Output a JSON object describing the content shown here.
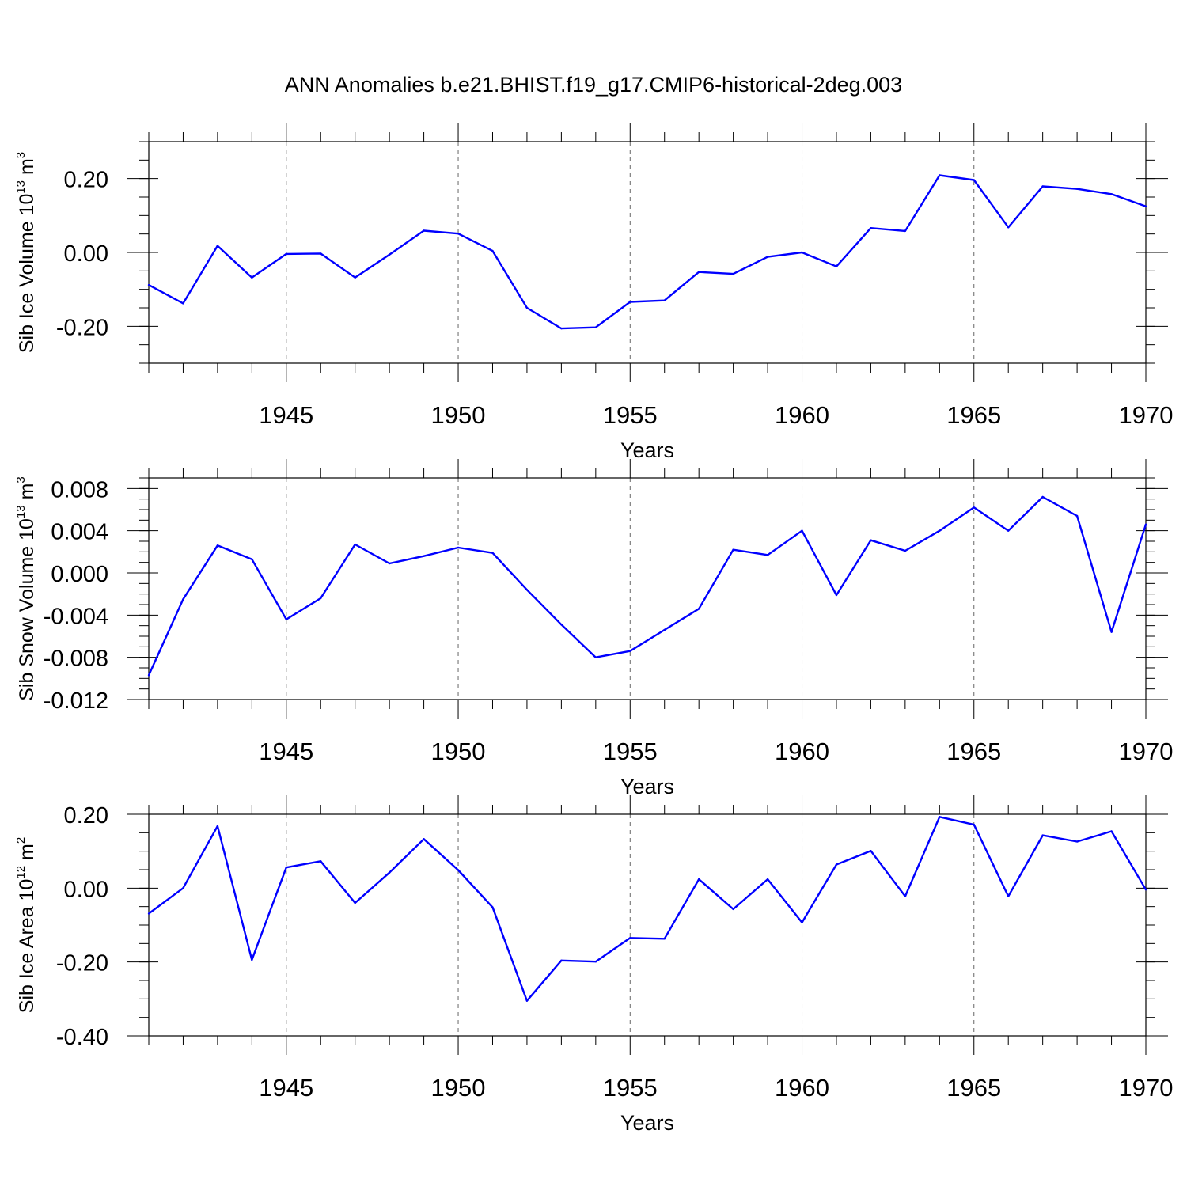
{
  "title": "ANN Anomalies b.e21.BHIST.f19_g17.CMIP6-historical-2deg.003",
  "line_color": "#0000ff",
  "chart_data": [
    {
      "type": "line",
      "ylabel": "Sib Ice Volume 10",
      "ylabel_sup": "13",
      "ylabel_unit": " m",
      "ylabel_unit_sup": "3",
      "xlabel": "Years",
      "xlim": [
        1941,
        1970
      ],
      "ylim": [
        -0.3,
        0.3
      ],
      "yticks": [
        -0.2,
        0.0,
        0.2
      ],
      "ytick_labels": [
        "-0.20",
        "0.00",
        "0.20"
      ],
      "yminor_step": 0.05,
      "xticks": [
        1945,
        1950,
        1955,
        1960,
        1965,
        1970
      ],
      "xtick_labels": [
        "1945",
        "1950",
        "1955",
        "1960",
        "1965",
        "1970"
      ],
      "grid": "dashed vertical at major x ticks",
      "x": [
        1941,
        1942,
        1943,
        1944,
        1945,
        1946,
        1947,
        1948,
        1949,
        1950,
        1951,
        1952,
        1953,
        1954,
        1955,
        1956,
        1957,
        1958,
        1959,
        1960,
        1961,
        1962,
        1963,
        1964,
        1965,
        1966,
        1967,
        1968,
        1969,
        1970
      ],
      "series": [
        {
          "name": "Sib Ice Volume",
          "values": [
            -0.088,
            -0.138,
            0.018,
            -0.068,
            -0.004,
            -0.003,
            -0.068,
            -0.006,
            0.059,
            0.051,
            0.004,
            -0.15,
            -0.206,
            -0.203,
            -0.134,
            -0.13,
            -0.053,
            -0.058,
            -0.012,
            0.0,
            -0.038,
            0.066,
            0.058,
            0.209,
            0.196,
            0.068,
            0.179,
            0.172,
            0.158,
            0.125
          ]
        }
      ]
    },
    {
      "type": "line",
      "ylabel": "Sib Snow Volume 10",
      "ylabel_sup": "13",
      "ylabel_unit": " m",
      "ylabel_unit_sup": "3",
      "xlabel": "Years",
      "xlim": [
        1941,
        1970
      ],
      "ylim": [
        -0.012,
        0.009
      ],
      "yticks": [
        -0.012,
        -0.008,
        -0.004,
        0.0,
        0.004,
        0.008
      ],
      "ytick_labels": [
        "-0.012",
        "-0.008",
        "-0.004",
        "0.000",
        "0.004",
        "0.008"
      ],
      "yminor_step": 0.001,
      "xticks": [
        1945,
        1950,
        1955,
        1960,
        1965,
        1970
      ],
      "xtick_labels": [
        "1945",
        "1950",
        "1955",
        "1960",
        "1965",
        "1970"
      ],
      "grid": "dashed vertical at major x ticks",
      "x": [
        1941,
        1942,
        1943,
        1944,
        1945,
        1946,
        1947,
        1948,
        1949,
        1950,
        1951,
        1952,
        1953,
        1954,
        1955,
        1956,
        1957,
        1958,
        1959,
        1960,
        1961,
        1962,
        1963,
        1964,
        1965,
        1966,
        1967,
        1968,
        1969,
        1970
      ],
      "series": [
        {
          "name": "Sib Snow Volume",
          "values": [
            -0.0097,
            -0.0025,
            0.0026,
            0.0013,
            -0.0044,
            -0.0024,
            0.0027,
            0.0009,
            0.0016,
            0.0024,
            0.0019,
            -0.0016,
            -0.0049,
            -0.008,
            -0.0074,
            -0.0054,
            -0.0034,
            0.0022,
            0.0017,
            0.004,
            -0.0021,
            0.0031,
            0.0021,
            0.004,
            0.0062,
            0.004,
            0.0072,
            0.0054,
            -0.0056,
            0.0046
          ]
        }
      ]
    },
    {
      "type": "line",
      "ylabel": "Sib Ice Area 10",
      "ylabel_sup": "12",
      "ylabel_unit": " m",
      "ylabel_unit_sup": "2",
      "xlabel": "Years",
      "xlim": [
        1941,
        1970
      ],
      "ylim": [
        -0.4,
        0.2
      ],
      "yticks": [
        -0.4,
        -0.2,
        0.0,
        0.2
      ],
      "ytick_labels": [
        "-0.40",
        "-0.20",
        "0.00",
        "0.20"
      ],
      "yminor_step": 0.05,
      "xticks": [
        1945,
        1950,
        1955,
        1960,
        1965,
        1970
      ],
      "xtick_labels": [
        "1945",
        "1950",
        "1955",
        "1960",
        "1965",
        "1970"
      ],
      "grid": "dashed vertical at major x ticks",
      "x": [
        1941,
        1942,
        1943,
        1944,
        1945,
        1946,
        1947,
        1948,
        1949,
        1950,
        1951,
        1952,
        1953,
        1954,
        1955,
        1956,
        1957,
        1958,
        1959,
        1960,
        1961,
        1962,
        1963,
        1964,
        1965,
        1966,
        1967,
        1968,
        1969,
        1970
      ],
      "series": [
        {
          "name": "Sib Ice Area",
          "values": [
            -0.069,
            0.0,
            0.168,
            -0.194,
            0.056,
            0.073,
            -0.04,
            0.042,
            0.133,
            0.049,
            -0.052,
            -0.305,
            -0.196,
            -0.199,
            -0.135,
            -0.137,
            0.024,
            -0.057,
            0.024,
            -0.093,
            0.064,
            0.101,
            -0.022,
            0.193,
            0.172,
            -0.022,
            0.143,
            0.126,
            0.154,
            -0.004
          ]
        }
      ]
    }
  ]
}
